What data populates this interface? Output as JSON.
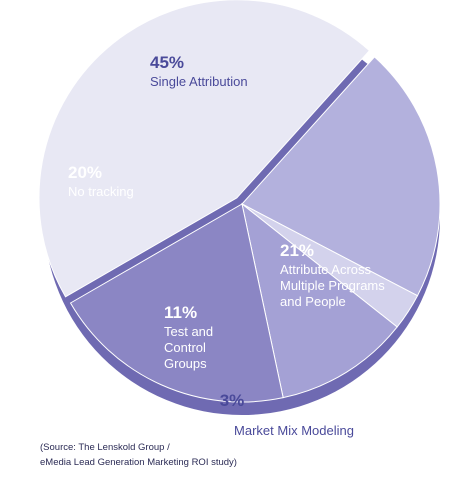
{
  "chart_data": {
    "type": "pie",
    "slices": [
      {
        "value": 45,
        "percent_label": "45%",
        "label": [
          "Single Attribution"
        ],
        "color": "#e8e8f4",
        "text_color": "#4a4a9a"
      },
      {
        "value": 21,
        "percent_label": "21%",
        "label": [
          "Attribute Across",
          "Multiple Programs",
          "and People"
        ],
        "color": "#b3b1dd",
        "text_color": "#ffffff"
      },
      {
        "value": 3,
        "percent_label": "3%",
        "label": [
          "Market Mix Modeling"
        ],
        "color": "#d3d2ec",
        "text_color": "#4a4a9a"
      },
      {
        "value": 11,
        "percent_label": "11%",
        "label": [
          "Test and",
          "Control",
          "Groups"
        ],
        "color": "#a4a1d5",
        "text_color": "#ffffff"
      },
      {
        "value": 20,
        "percent_label": "20%",
        "label": [
          "No tracking"
        ],
        "color": "#8b86c4",
        "text_color": "#ffffff"
      }
    ],
    "rim_color": "#6f6ab2"
  },
  "source": {
    "line1": "(Source: The Lenskold Group /",
    "line2": "eMedia Lead Generation Marketing ROI study)"
  }
}
